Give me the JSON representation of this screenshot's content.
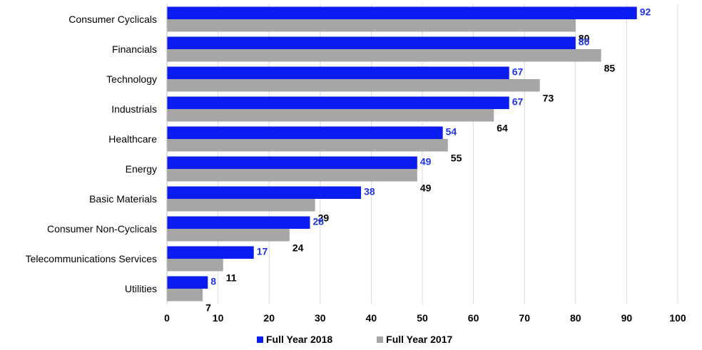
{
  "chart_data": {
    "type": "bar",
    "orientation": "horizontal",
    "categories": [
      "Consumer Cyclicals",
      "Financials",
      "Technology",
      "Industrials",
      "Healthcare",
      "Energy",
      "Basic Materials",
      "Consumer Non-Cyclicals",
      "Telecommunications Services",
      "Utilities"
    ],
    "series": [
      {
        "name": "Full Year 2018",
        "color": "#0a1cf0",
        "label_color": "#1f35e6",
        "values": [
          92,
          80,
          67,
          67,
          54,
          49,
          38,
          28,
          17,
          8
        ]
      },
      {
        "name": "Full Year 2017",
        "color": "#a6a6a6",
        "label_color": "#000000",
        "values": [
          80,
          85,
          73,
          64,
          55,
          49,
          29,
          24,
          11,
          7
        ]
      }
    ],
    "xlim": [
      0,
      100
    ],
    "xticks": [
      0,
      10,
      20,
      30,
      40,
      50,
      60,
      70,
      80,
      90,
      100
    ],
    "grid": true,
    "legend_position": "bottom"
  }
}
